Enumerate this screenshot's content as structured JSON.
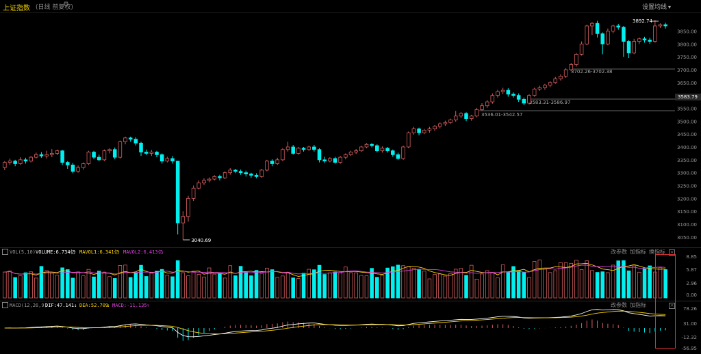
{
  "header": {
    "title": "上证指数",
    "subtitle": "(日线 前复权)",
    "settings_icon": "gear-icon",
    "set_ma": "设置均线",
    "set_ma_arrow": "▾"
  },
  "colors": {
    "up": "#d96060",
    "down": "#00f0f0",
    "ma5": "#ffffff",
    "ma10": "#ffd700",
    "ma20": "#e040e0",
    "highlight": "#e03030"
  },
  "price_axis": {
    "ticks": [
      "3850.00",
      "3800.00",
      "3750.00",
      "3700.00",
      "3650.00",
      "3600.00",
      "3550.00",
      "3500.00",
      "3450.00",
      "3400.00",
      "3350.00",
      "3300.00",
      "3250.00",
      "3200.00",
      "3150.00",
      "3100.00",
      "3050.00"
    ],
    "current": "3583.79"
  },
  "annotations": {
    "high": "3892.74",
    "low": "3040.69",
    "gap1": "3702.26-3702.38",
    "gap2": "3583.31-3586.97",
    "gap3": "3536.01-3542.57"
  },
  "vol_panel": {
    "name": "VOL(5,10)",
    "volume": "VOLUME:6.734亿",
    "volume_arrow": "↑",
    "mavol1": "MAVOL1:6.341亿",
    "mavol1_arrow": "↑",
    "mavol2": "MAVOL2:6.413亿",
    "mavol2_arrow": "↓",
    "btn_params": "改参数",
    "btn_add": "加指标",
    "btn_switch": "换指标",
    "axis": [
      "8.85",
      "5.87",
      "2.96",
      "0.00"
    ]
  },
  "macd_panel": {
    "name": "MACD(12,26,9)",
    "dif": "DIF:47.141",
    "dif_arrow": "↓",
    "dea": "DEA:52.709",
    "dea_arrow": "↓",
    "macd": "MACD:-11.135",
    "macd_arrow": "↑",
    "btn_params": "改参数",
    "btn_add": "加指标",
    "axis": [
      "78.26",
      "31.00",
      "-12.32",
      "-56.95"
    ]
  },
  "chart_data": {
    "type": "candlestick",
    "series": [
      {
        "name": "K",
        "values": [
          [
            3320,
            3340,
            3310,
            3345
          ],
          [
            3340,
            3345,
            3330,
            3355
          ],
          [
            3345,
            3335,
            3325,
            3350
          ],
          [
            3335,
            3350,
            3330,
            3360
          ],
          [
            3350,
            3345,
            3335,
            3358
          ],
          [
            3345,
            3360,
            3340,
            3365
          ],
          [
            3360,
            3370,
            3355,
            3378
          ],
          [
            3370,
            3365,
            3358,
            3380
          ],
          [
            3365,
            3370,
            3355,
            3385
          ],
          [
            3370,
            3375,
            3360,
            3392
          ],
          [
            3375,
            3385,
            3368,
            3390
          ],
          [
            3385,
            3340,
            3330,
            3388
          ],
          [
            3340,
            3330,
            3315,
            3345
          ],
          [
            3330,
            3305,
            3298,
            3338
          ],
          [
            3305,
            3320,
            3300,
            3328
          ],
          [
            3320,
            3335,
            3312,
            3340
          ],
          [
            3335,
            3380,
            3330,
            3385
          ],
          [
            3380,
            3360,
            3352,
            3385
          ],
          [
            3360,
            3350,
            3345,
            3370
          ],
          [
            3350,
            3385,
            3345,
            3390
          ],
          [
            3385,
            3390,
            3375,
            3395
          ],
          [
            3390,
            3360,
            3352,
            3398
          ],
          [
            3360,
            3420,
            3355,
            3425
          ],
          [
            3420,
            3435,
            3410,
            3440
          ],
          [
            3435,
            3430,
            3420,
            3440
          ],
          [
            3430,
            3415,
            3405,
            3438
          ],
          [
            3415,
            3380,
            3365,
            3420
          ],
          [
            3380,
            3375,
            3368,
            3390
          ],
          [
            3375,
            3380,
            3365,
            3388
          ],
          [
            3380,
            3370,
            3360,
            3385
          ],
          [
            3370,
            3345,
            3335,
            3375
          ],
          [
            3345,
            3355,
            3340,
            3362
          ],
          [
            3355,
            3345,
            3335,
            3365
          ],
          [
            3345,
            3105,
            3060,
            3345
          ],
          [
            3105,
            3130,
            3040,
            3150
          ],
          [
            3130,
            3200,
            3110,
            3210
          ],
          [
            3200,
            3240,
            3190,
            3250
          ],
          [
            3240,
            3260,
            3235,
            3270
          ],
          [
            3260,
            3270,
            3252,
            3278
          ],
          [
            3270,
            3275,
            3262,
            3282
          ],
          [
            3275,
            3285,
            3270,
            3290
          ],
          [
            3285,
            3280,
            3270,
            3292
          ],
          [
            3280,
            3300,
            3275,
            3305
          ],
          [
            3300,
            3310,
            3292,
            3318
          ],
          [
            3310,
            3305,
            3298,
            3315
          ],
          [
            3305,
            3300,
            3292,
            3312
          ],
          [
            3300,
            3295,
            3285,
            3308
          ],
          [
            3295,
            3290,
            3280,
            3300
          ],
          [
            3290,
            3285,
            3278,
            3298
          ],
          [
            3285,
            3310,
            3280,
            3315
          ],
          [
            3310,
            3345,
            3305,
            3350
          ],
          [
            3345,
            3335,
            3325,
            3352
          ],
          [
            3335,
            3350,
            3330,
            3358
          ],
          [
            3350,
            3390,
            3345,
            3395
          ],
          [
            3390,
            3400,
            3382,
            3420
          ],
          [
            3400,
            3375,
            3370,
            3408
          ],
          [
            3375,
            3395,
            3370,
            3400
          ],
          [
            3395,
            3390,
            3382,
            3400
          ],
          [
            3390,
            3400,
            3385,
            3405
          ],
          [
            3400,
            3390,
            3382,
            3408
          ],
          [
            3390,
            3350,
            3340,
            3395
          ],
          [
            3350,
            3345,
            3338,
            3362
          ],
          [
            3345,
            3355,
            3340,
            3360
          ],
          [
            3355,
            3340,
            3335,
            3362
          ],
          [
            3340,
            3360,
            3335,
            3365
          ],
          [
            3360,
            3370,
            3352,
            3375
          ],
          [
            3370,
            3380,
            3365,
            3385
          ],
          [
            3380,
            3385,
            3372,
            3392
          ],
          [
            3385,
            3400,
            3380,
            3405
          ],
          [
            3400,
            3410,
            3395,
            3415
          ],
          [
            3410,
            3405,
            3398,
            3415
          ],
          [
            3405,
            3385,
            3380,
            3410
          ],
          [
            3385,
            3395,
            3378,
            3402
          ],
          [
            3395,
            3385,
            3378,
            3400
          ],
          [
            3385,
            3370,
            3362,
            3390
          ],
          [
            3370,
            3355,
            3350,
            3378
          ],
          [
            3355,
            3400,
            3350,
            3405
          ],
          [
            3400,
            3455,
            3395,
            3460
          ],
          [
            3455,
            3470,
            3448,
            3478
          ],
          [
            3470,
            3455,
            3445,
            3475
          ],
          [
            3455,
            3465,
            3450,
            3470
          ],
          [
            3465,
            3470,
            3455,
            3478
          ],
          [
            3470,
            3480,
            3462,
            3485
          ],
          [
            3480,
            3490,
            3472,
            3495
          ],
          [
            3490,
            3495,
            3482,
            3502
          ],
          [
            3495,
            3505,
            3490,
            3510
          ],
          [
            3505,
            3520,
            3498,
            3540
          ],
          [
            3520,
            3530,
            3512,
            3535
          ],
          [
            3530,
            3510,
            3500,
            3535
          ],
          [
            3510,
            3520,
            3502,
            3525
          ],
          [
            3520,
            3545,
            3515,
            3552
          ],
          [
            3545,
            3560,
            3540,
            3570
          ],
          [
            3560,
            3575,
            3552,
            3582
          ],
          [
            3575,
            3600,
            3568,
            3608
          ],
          [
            3600,
            3615,
            3592,
            3622
          ],
          [
            3615,
            3620,
            3605,
            3630
          ],
          [
            3620,
            3605,
            3595,
            3628
          ],
          [
            3605,
            3600,
            3592,
            3612
          ],
          [
            3600,
            3585,
            3575,
            3608
          ],
          [
            3585,
            3570,
            3562,
            3592
          ],
          [
            3570,
            3600,
            3565,
            3605
          ],
          [
            3600,
            3625,
            3595,
            3630
          ],
          [
            3625,
            3630,
            3618,
            3638
          ],
          [
            3630,
            3640,
            3622,
            3645
          ],
          [
            3640,
            3650,
            3632,
            3655
          ],
          [
            3650,
            3665,
            3645,
            3672
          ],
          [
            3665,
            3675,
            3658,
            3682
          ],
          [
            3675,
            3700,
            3668,
            3706
          ],
          [
            3700,
            3720,
            3694,
            3726
          ],
          [
            3720,
            3760,
            3712,
            3765
          ],
          [
            3760,
            3800,
            3755,
            3810
          ],
          [
            3800,
            3870,
            3795,
            3875
          ],
          [
            3870,
            3880,
            3835,
            3885
          ],
          [
            3880,
            3840,
            3825,
            3890
          ],
          [
            3840,
            3800,
            3760,
            3845
          ],
          [
            3800,
            3850,
            3795,
            3860
          ],
          [
            3850,
            3870,
            3842,
            3875
          ],
          [
            3870,
            3865,
            3855,
            3878
          ],
          [
            3865,
            3810,
            3750,
            3870
          ],
          [
            3810,
            3765,
            3745,
            3815
          ],
          [
            3765,
            3810,
            3760,
            3820
          ],
          [
            3810,
            3820,
            3800,
            3825
          ],
          [
            3820,
            3815,
            3805,
            3828
          ],
          [
            3815,
            3810,
            3800,
            3824
          ],
          [
            3810,
            3870,
            3805,
            3893
          ],
          [
            3870,
            3875,
            3862,
            3880
          ],
          [
            3875,
            3870,
            3860,
            3882
          ]
        ]
      }
    ]
  }
}
